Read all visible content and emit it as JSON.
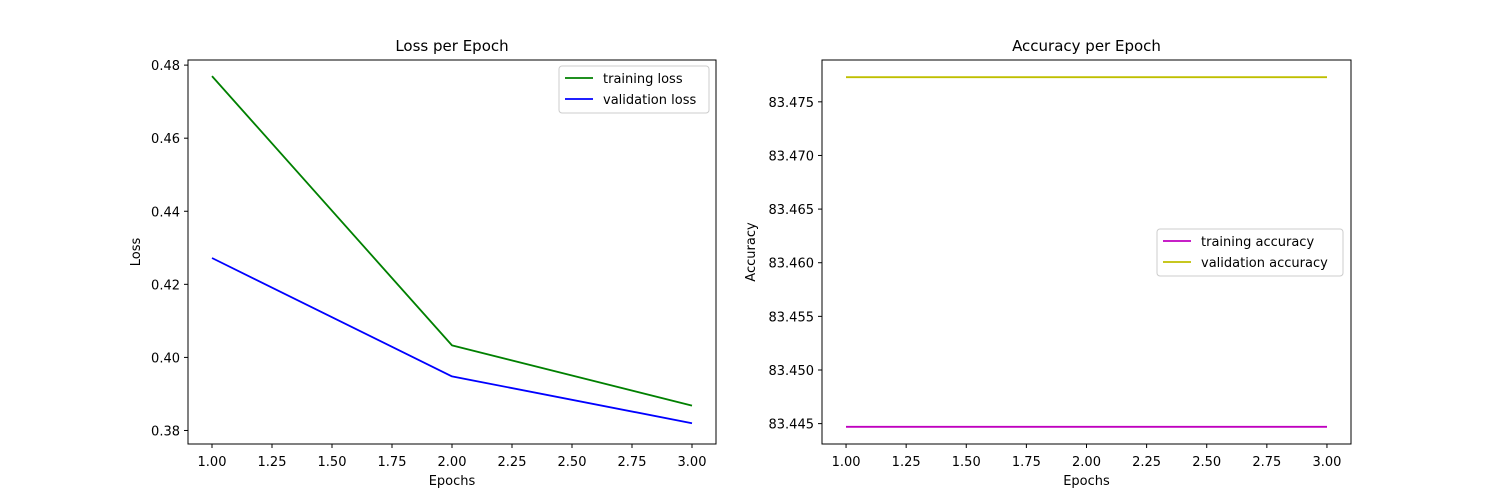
{
  "chart_data": [
    {
      "type": "line",
      "title": "Loss per Epoch",
      "xlabel": "Epochs",
      "ylabel": "Loss",
      "xlim": [
        0.9,
        3.1
      ],
      "ylim": [
        0.3763,
        0.4814
      ],
      "xticks": [
        1.0,
        1.25,
        1.5,
        1.75,
        2.0,
        2.25,
        2.5,
        2.75,
        3.0
      ],
      "xtick_labels": [
        "1.00",
        "1.25",
        "1.50",
        "1.75",
        "2.00",
        "2.25",
        "2.50",
        "2.75",
        "3.00"
      ],
      "yticks": [
        0.38,
        0.4,
        0.42,
        0.44,
        0.46,
        0.48
      ],
      "ytick_labels": [
        "0.38",
        "0.40",
        "0.42",
        "0.44",
        "0.46",
        "0.48"
      ],
      "grid": false,
      "legend_position": "upper right",
      "x": [
        1,
        2,
        3
      ],
      "series": [
        {
          "name": "training loss",
          "color": "#008000",
          "values": [
            0.477,
            0.4033,
            0.3868
          ]
        },
        {
          "name": "validation loss",
          "color": "#0000ff",
          "values": [
            0.4272,
            0.3948,
            0.382
          ]
        }
      ]
    },
    {
      "type": "line",
      "title": "Accuracy per Epoch",
      "xlabel": "Epochs",
      "ylabel": "Accuracy",
      "xlim": [
        0.9,
        3.1
      ],
      "ylim": [
        83.4431,
        83.4789
      ],
      "xticks": [
        1.0,
        1.25,
        1.5,
        1.75,
        2.0,
        2.25,
        2.5,
        2.75,
        3.0
      ],
      "xtick_labels": [
        "1.00",
        "1.25",
        "1.50",
        "1.75",
        "2.00",
        "2.25",
        "2.50",
        "2.75",
        "3.00"
      ],
      "yticks": [
        83.445,
        83.45,
        83.455,
        83.46,
        83.465,
        83.47,
        83.475
      ],
      "ytick_labels": [
        "83.445",
        "83.450",
        "83.455",
        "83.460",
        "83.465",
        "83.470",
        "83.475"
      ],
      "grid": false,
      "legend_position": "center right",
      "x": [
        1,
        2,
        3
      ],
      "series": [
        {
          "name": "training accuracy",
          "color": "#bf00bf",
          "values": [
            83.4447,
            83.4447,
            83.4447
          ]
        },
        {
          "name": "validation accuracy",
          "color": "#bfbf00",
          "values": [
            83.4773,
            83.4773,
            83.4773
          ]
        }
      ]
    }
  ]
}
